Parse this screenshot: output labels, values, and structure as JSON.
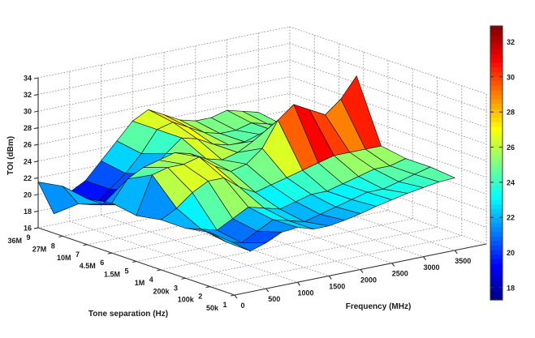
{
  "chart_data": {
    "type": "surface",
    "title": "",
    "xlabel": "Frequency (MHz)",
    "ylabel": "Tone separation (Hz)",
    "zlabel": "TOI (dBm)",
    "colormap": "jet",
    "xlim": [
      0,
      4000
    ],
    "ylim": [
      1,
      9
    ],
    "zlim": [
      16,
      34
    ],
    "caxis": [
      17.3,
      32.9
    ],
    "x_ticks": [
      0,
      500,
      1000,
      1500,
      2000,
      2500,
      3000,
      3500
    ],
    "z_ticks": [
      16,
      18,
      20,
      22,
      24,
      26,
      28,
      30,
      32,
      34
    ],
    "colorbar_ticks": [
      18,
      20,
      22,
      24,
      26,
      28,
      30,
      32
    ],
    "x_values": [
      0,
      250,
      500,
      750,
      1000,
      1250,
      1500,
      1750,
      2000,
      2250,
      2500,
      2750,
      3000,
      3250,
      3500
    ],
    "rows_front_to_back": [
      {
        "index": 1,
        "separation": "50k",
        "values": [
          22.2,
          20.9,
          21.5,
          22.4,
          22.6,
          22.0,
          22.0,
          22.3,
          22.7,
          23.2,
          23.6,
          24.0,
          24.3,
          24.6,
          24.7
        ]
      },
      {
        "index": 2,
        "separation": "100k",
        "values": [
          22.5,
          21.0,
          20.5,
          21.5,
          22.5,
          22.0,
          21.5,
          22.0,
          22.5,
          23.0,
          23.5,
          23.5,
          24.0,
          24.5,
          25.0
        ]
      },
      {
        "index": 3,
        "separation": "200k",
        "values": [
          22.0,
          21.5,
          21.0,
          22.0,
          23.0,
          22.5,
          22.0,
          22.5,
          23.0,
          23.0,
          23.5,
          24.0,
          24.5,
          24.5,
          25.0
        ]
      },
      {
        "index": 4,
        "separation": "1M",
        "values": [
          22.0,
          23.0,
          24.5,
          25.5,
          25.5,
          24.0,
          23.0,
          23.5,
          24.0,
          24.5,
          25.0,
          25.5,
          25.5,
          25.5,
          25.5
        ]
      },
      {
        "index": 5,
        "separation": "1.5M",
        "values": [
          21.5,
          26.0,
          26.5,
          26.5,
          27.0,
          25.5,
          24.5,
          25.0,
          26.5,
          29.5,
          31.0,
          30.0,
          29.0,
          30.5,
          32.9
        ]
      },
      {
        "index": 6,
        "separation": "4.5M",
        "values": [
          22.0,
          24.5,
          25.5,
          26.0,
          26.5,
          26.0,
          25.0,
          24.5,
          25.0,
          26.0,
          27.0,
          27.5,
          27.0,
          26.0,
          25.5
        ]
      },
      {
        "index": 7,
        "separation": "10M",
        "values": [
          21.5,
          20.5,
          20.0,
          21.5,
          23.0,
          25.0,
          26.5,
          26.0,
          25.0,
          24.5,
          24.5,
          25.0,
          25.0,
          24.5,
          24.0
        ]
      },
      {
        "index": 8,
        "separation": "27M",
        "values": [
          22.0,
          19.5,
          19.0,
          20.5,
          22.0,
          24.0,
          26.5,
          27.0,
          26.0,
          25.0,
          24.5,
          24.5,
          25.0,
          24.5,
          24.0
        ]
      },
      {
        "index": 9,
        "separation": "36M",
        "values": [
          21.5,
          17.3,
          19.5,
          20.5,
          22.5,
          24.5,
          26.5,
          27.5,
          26.5,
          25.5,
          25.0,
          25.0,
          25.5,
          25.0,
          24.5
        ]
      }
    ],
    "colors": {
      "background": "#ffffff",
      "grid": "#999999",
      "axis": "#333333",
      "mesh_edge": "#1a1a1a",
      "text": "#1a1a1a",
      "colorbar_top": "#800000",
      "colorbar_bottom": "#000080"
    },
    "legend_position": "colorbar-right",
    "grid": "dotted"
  }
}
